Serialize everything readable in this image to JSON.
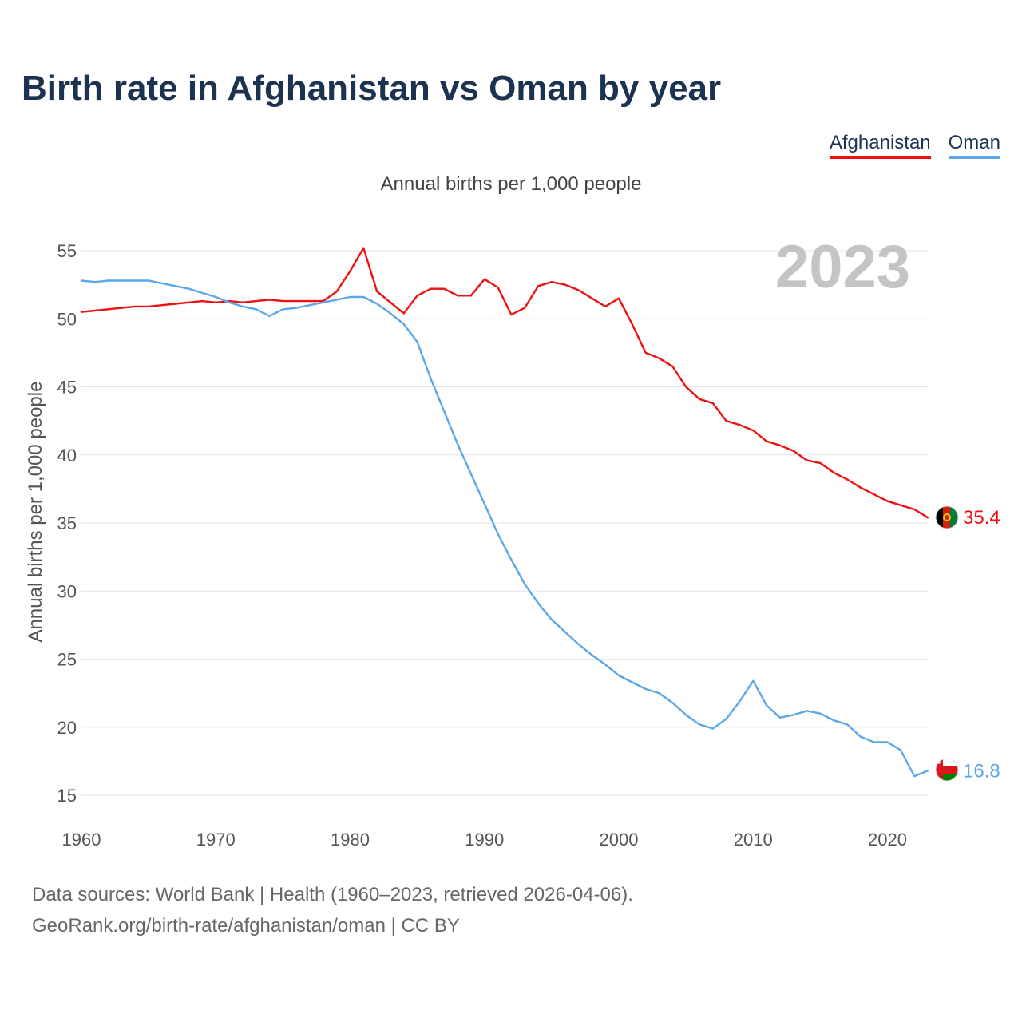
{
  "title": "Birth rate in Afghanistan vs Oman by year",
  "legend": [
    {
      "label": "Afghanistan",
      "color": "#ee1111"
    },
    {
      "label": "Oman",
      "color": "#5ba7e8"
    }
  ],
  "footer": {
    "source": "Data sources: World Bank | Health (1960–2023, retrieved 2026-04-06).",
    "url": "GeoRank.org/birth-rate/afghanistan/oman | CC BY"
  },
  "chart_data": {
    "type": "line",
    "title": "Birth rate in Afghanistan vs Oman by year",
    "subtitle": "Annual births per 1,000 people",
    "xlabel": "",
    "ylabel": "Annual births per 1,000 people",
    "year_label": "2023",
    "xlim": [
      1960,
      2023
    ],
    "ylim": [
      15,
      55
    ],
    "xticks": [
      1960,
      1970,
      1980,
      1990,
      2000,
      2010,
      2020
    ],
    "yticks": [
      15,
      20,
      25,
      30,
      35,
      40,
      45,
      50,
      55
    ],
    "grid": true,
    "legend_position": "top-right",
    "x": [
      1960,
      1961,
      1962,
      1963,
      1964,
      1965,
      1966,
      1967,
      1968,
      1969,
      1970,
      1971,
      1972,
      1973,
      1974,
      1975,
      1976,
      1977,
      1978,
      1979,
      1980,
      1981,
      1982,
      1983,
      1984,
      1985,
      1986,
      1987,
      1988,
      1989,
      1990,
      1991,
      1992,
      1993,
      1994,
      1995,
      1996,
      1997,
      1998,
      1999,
      2000,
      2001,
      2002,
      2003,
      2004,
      2005,
      2006,
      2007,
      2008,
      2009,
      2010,
      2011,
      2012,
      2013,
      2014,
      2015,
      2016,
      2017,
      2018,
      2019,
      2020,
      2021,
      2022,
      2023
    ],
    "series": [
      {
        "name": "Afghanistan",
        "color": "#ee1111",
        "end_label": "35.4",
        "values": [
          50.5,
          50.6,
          50.7,
          50.8,
          50.9,
          50.9,
          51.0,
          51.1,
          51.2,
          51.3,
          51.2,
          51.3,
          51.2,
          51.3,
          51.4,
          51.3,
          51.3,
          51.3,
          51.3,
          52.0,
          53.5,
          55.2,
          52.0,
          51.2,
          50.4,
          51.7,
          52.2,
          52.2,
          51.7,
          51.7,
          52.9,
          52.3,
          50.3,
          50.8,
          52.4,
          52.7,
          52.5,
          52.1,
          51.5,
          50.9,
          51.5,
          49.6,
          47.5,
          47.1,
          46.5,
          45.0,
          44.1,
          43.8,
          42.5,
          42.2,
          41.8,
          41.0,
          40.7,
          40.3,
          39.6,
          39.4,
          38.7,
          38.2,
          37.6,
          37.1,
          36.6,
          36.3,
          36.0,
          35.4
        ]
      },
      {
        "name": "Oman",
        "color": "#5ba7e8",
        "end_label": "16.8",
        "values": [
          52.8,
          52.7,
          52.8,
          52.8,
          52.8,
          52.8,
          52.6,
          52.4,
          52.2,
          51.9,
          51.6,
          51.2,
          50.9,
          50.7,
          50.2,
          50.7,
          50.8,
          51.0,
          51.2,
          51.4,
          51.6,
          51.6,
          51.1,
          50.4,
          49.6,
          48.3,
          45.6,
          43.2,
          40.8,
          38.6,
          36.4,
          34.2,
          32.3,
          30.5,
          29.1,
          27.9,
          27.0,
          26.1,
          25.3,
          24.6,
          23.8,
          23.3,
          22.8,
          22.5,
          21.8,
          20.9,
          20.2,
          19.9,
          20.6,
          21.9,
          23.4,
          21.6,
          20.7,
          20.9,
          21.2,
          21.0,
          20.5,
          20.2,
          19.3,
          18.9,
          18.9,
          18.3,
          16.4,
          16.8
        ]
      }
    ]
  }
}
